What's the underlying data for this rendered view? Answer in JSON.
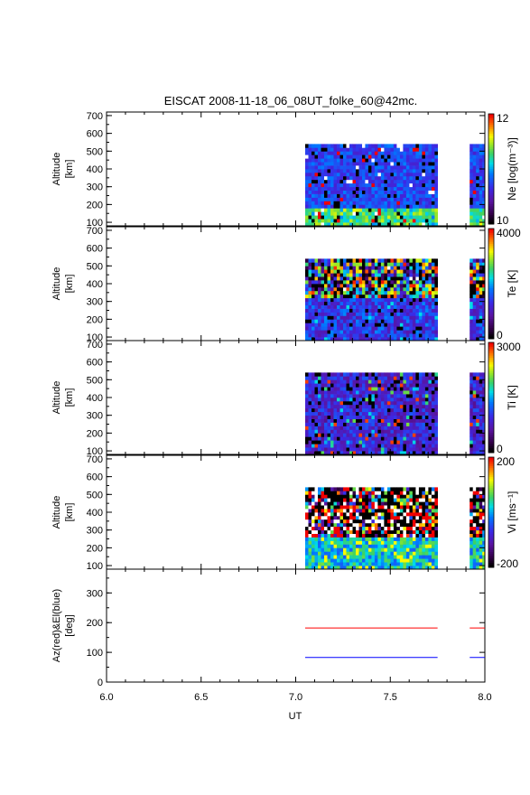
{
  "chart_data": {
    "type": "heatmap",
    "title": "EISCAT 2008-11-18_06_08UT_folke_60@42mc.",
    "xlabel": "UT",
    "xlim": [
      6.0,
      8.0
    ],
    "xticks": [
      "6.0",
      "6.5",
      "7.0",
      "7.5",
      "8.0"
    ],
    "data_intervals_ut": [
      [
        7.05,
        7.75
      ],
      [
        7.92,
        8.0
      ]
    ],
    "range_gates_km": [
      80,
      540
    ],
    "panels": [
      {
        "ylabel": [
          "Altitude",
          "[km]"
        ],
        "ylim": [
          80,
          720
        ],
        "yticks": [
          "100",
          "200",
          "300",
          "400",
          "500",
          "600",
          "700"
        ],
        "colorbar_label": "Ne [log(m⁻³)]",
        "colorbar_ticks": [
          "12",
          "10"
        ],
        "clim": [
          10,
          12
        ],
        "summary": "mostly 10.5-11.2 (blue/purple), peaks ~11.5 near 120 km"
      },
      {
        "ylabel": [
          "Altitude",
          "[km]"
        ],
        "ylim": [
          80,
          720
        ],
        "yticks": [
          "100",
          "200",
          "300",
          "400",
          "500",
          "600",
          "700"
        ],
        "colorbar_label": "Te [K]",
        "colorbar_ticks": [
          "4000",
          "0"
        ],
        "clim": [
          0,
          4000
        ],
        "summary": "~500-1500 K below 300 km, noisy 2000-4000 K above 350 km"
      },
      {
        "ylabel": [
          "Altitude",
          "[km]"
        ],
        "ylim": [
          80,
          720
        ],
        "yticks": [
          "100",
          "200",
          "300",
          "400",
          "500",
          "600",
          "700"
        ],
        "colorbar_label": "Ti [K]",
        "colorbar_ticks": [
          "3000",
          "0"
        ],
        "clim": [
          0,
          3000
        ],
        "summary": "mostly ~300-1000 K (purple/blue)"
      },
      {
        "ylabel": [
          "Altitude",
          "[km]"
        ],
        "ylim": [
          80,
          720
        ],
        "yticks": [
          "100",
          "200",
          "300",
          "400",
          "500",
          "600",
          "700"
        ],
        "colorbar_label": "Vi [ms⁻¹]",
        "colorbar_ticks": [
          "200",
          "-200"
        ],
        "clim": [
          -200,
          200
        ],
        "summary": "near 0 below 250 km, saturated +/-200 noise above 350 km"
      }
    ],
    "pointing": {
      "ylabel": [
        "Az(red)&El(blue)",
        "[deg]"
      ],
      "ylim": [
        0,
        380
      ],
      "yticks": [
        "0",
        "100",
        "200",
        "300"
      ],
      "series": [
        {
          "label": "Az",
          "color": "#ff0000",
          "value": 182
        },
        {
          "label": "El",
          "color": "#0000ff",
          "value": 83
        }
      ]
    }
  }
}
